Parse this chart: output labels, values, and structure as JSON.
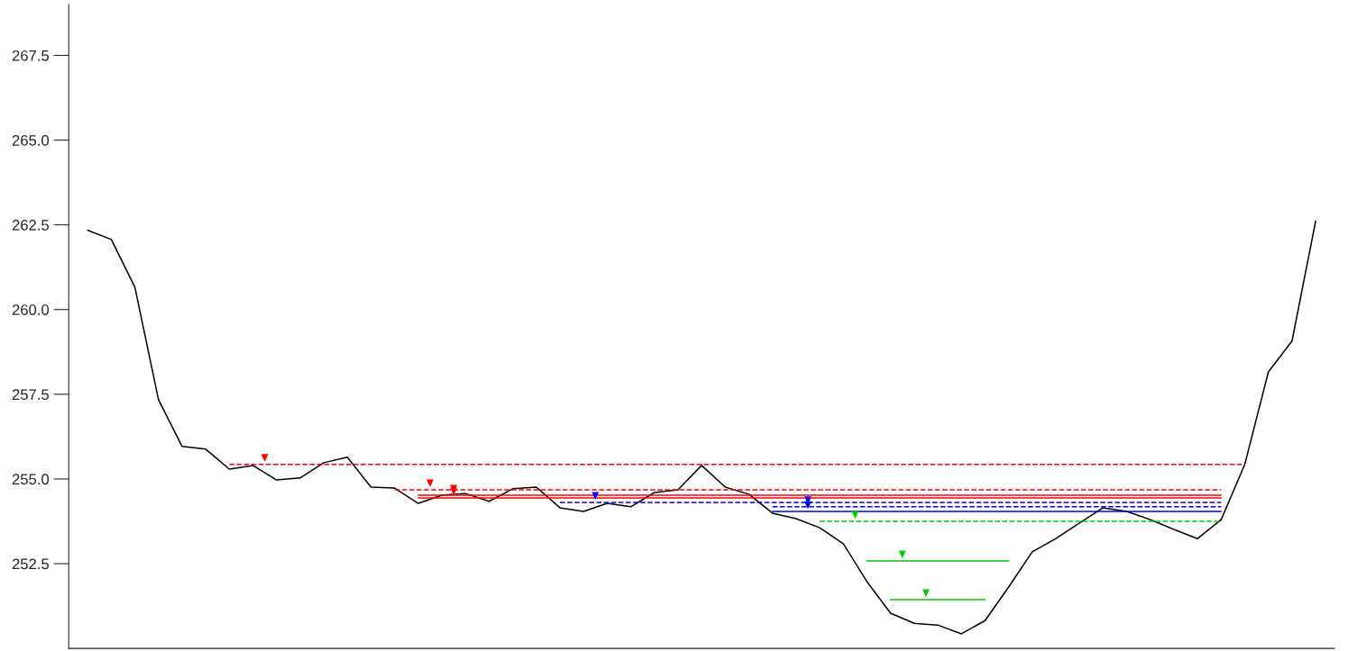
{
  "chart_data": {
    "type": "line",
    "tick_labels": "y",
    "categories": [
      null,
      null,
      null,
      null,
      null,
      null,
      null,
      null,
      null,
      null,
      null,
      null,
      null,
      null,
      null,
      null,
      null,
      null,
      null,
      null,
      null,
      null,
      null,
      null,
      null,
      null,
      null,
      null,
      null,
      null,
      null,
      null,
      null,
      null,
      null,
      null,
      null,
      null,
      null,
      null,
      null,
      null,
      null,
      null,
      null,
      null,
      null,
      null,
      null,
      null,
      null,
      null,
      null
    ],
    "ylim": [
      250,
      269
    ],
    "yticks": [
      {
        "value": 252.5,
        "label": "252.5"
      },
      {
        "value": 255,
        "label": "255.0"
      },
      {
        "value": 257.5,
        "label": "257.5"
      },
      {
        "value": 260,
        "label": "260.0"
      },
      {
        "value": 262.5,
        "label": "262.5"
      },
      {
        "value": 265,
        "label": "265.0"
      },
      {
        "value": 267.5,
        "label": "267.5"
      }
    ],
    "series": [
      {
        "color": "#000000",
        "values": [
          262.34,
          262.07,
          260.66,
          257.34,
          255.96,
          255.88,
          255.29,
          255.4,
          254.97,
          255.03,
          255.48,
          255.64,
          254.76,
          254.73,
          254.28,
          254.52,
          254.57,
          254.34,
          254.71,
          254.76,
          254.15,
          254.04,
          254.28,
          254.18,
          254.6,
          254.68,
          255.4,
          254.76,
          254.55,
          253.99,
          253.83,
          253.56,
          253.09,
          251.97,
          251.04,
          250.74,
          250.69,
          250.43,
          250.82,
          251.81,
          252.85,
          253.24,
          253.7,
          254.15,
          254.04,
          253.8,
          253.51,
          253.24,
          253.8,
          255.43,
          258.16,
          259.07,
          262.61
        ]
      },
      {
        "color": "#ff0000",
        "line_style": "dashed",
        "values": [
          null,
          null,
          null,
          null,
          null,
          null,
          255.43,
          255.43,
          255.43,
          255.43,
          255.43,
          255.43,
          255.43,
          255.43,
          255.43,
          255.43,
          255.43,
          255.43,
          255.43,
          255.43,
          255.43,
          255.43,
          255.43,
          255.43,
          255.43,
          255.43,
          255.43,
          255.43,
          255.43,
          255.43,
          255.43,
          255.43,
          255.43,
          255.43,
          255.43,
          255.43,
          255.43,
          255.43,
          255.43,
          255.43,
          255.43,
          255.43,
          255.43,
          255.43,
          255.43,
          255.43,
          255.43,
          255.43,
          255.43,
          255.43,
          null,
          null,
          null
        ]
      },
      {
        "color": "#ff0000",
        "line_style": "dashed",
        "values": [
          null,
          null,
          null,
          null,
          null,
          null,
          null,
          null,
          null,
          null,
          null,
          null,
          null,
          254.68,
          254.68,
          254.68,
          254.68,
          254.68,
          254.68,
          254.68,
          254.68,
          254.68,
          254.68,
          254.68,
          254.68,
          254.68,
          254.68,
          254.68,
          254.68,
          254.68,
          254.68,
          254.68,
          254.68,
          254.68,
          254.68,
          254.68,
          254.68,
          254.68,
          254.68,
          254.68,
          254.68,
          254.68,
          254.68,
          254.68,
          254.68,
          254.68,
          254.68,
          254.68,
          254.68,
          null,
          null,
          null,
          null
        ]
      },
      {
        "color": "#ff0000",
        "line_style": "solid",
        "values": [
          null,
          null,
          null,
          null,
          null,
          null,
          null,
          null,
          null,
          null,
          null,
          null,
          null,
          null,
          254.52,
          254.52,
          254.52,
          254.52,
          254.52,
          254.52,
          254.52,
          254.52,
          254.52,
          254.52,
          254.52,
          254.52,
          254.52,
          254.52,
          254.52,
          254.52,
          254.52,
          254.52,
          254.52,
          254.52,
          254.52,
          254.52,
          254.52,
          254.52,
          254.52,
          254.52,
          254.52,
          254.52,
          254.52,
          254.52,
          254.52,
          254.52,
          254.52,
          254.52,
          254.52,
          null,
          null,
          null,
          null
        ]
      },
      {
        "color": "#ff0000",
        "line_style": "solid",
        "values": [
          null,
          null,
          null,
          null,
          null,
          null,
          null,
          null,
          null,
          null,
          null,
          null,
          null,
          null,
          254.44,
          254.44,
          254.44,
          254.44,
          254.44,
          254.44,
          254.44,
          254.44,
          254.44,
          254.44,
          254.44,
          254.44,
          254.44,
          254.44,
          254.44,
          254.44,
          254.44,
          254.44,
          254.44,
          254.44,
          254.44,
          254.44,
          254.44,
          254.44,
          254.44,
          254.44,
          254.44,
          254.44,
          254.44,
          254.44,
          254.44,
          254.44,
          254.44,
          254.44,
          254.44,
          null,
          null,
          null,
          null
        ]
      },
      {
        "color": "#0000ff",
        "line_style": "dashed",
        "values": [
          null,
          null,
          null,
          null,
          null,
          null,
          null,
          null,
          null,
          null,
          null,
          null,
          null,
          null,
          null,
          null,
          null,
          null,
          null,
          null,
          254.31,
          254.31,
          254.31,
          254.31,
          254.31,
          254.31,
          254.31,
          254.31,
          254.31,
          254.31,
          254.31,
          254.31,
          254.31,
          254.31,
          254.31,
          254.31,
          254.31,
          254.31,
          254.31,
          254.31,
          254.31,
          254.31,
          254.31,
          254.31,
          254.31,
          254.31,
          254.31,
          254.31,
          254.31,
          null,
          null,
          null,
          null
        ]
      },
      {
        "color": "#0000ff",
        "line_style": "dashed",
        "values": [
          null,
          null,
          null,
          null,
          null,
          null,
          null,
          null,
          null,
          null,
          null,
          null,
          null,
          null,
          null,
          null,
          null,
          null,
          null,
          null,
          null,
          null,
          null,
          null,
          null,
          null,
          null,
          null,
          null,
          254.18,
          254.18,
          254.18,
          254.18,
          254.18,
          254.18,
          254.18,
          254.18,
          254.18,
          254.18,
          254.18,
          254.18,
          254.18,
          254.18,
          254.18,
          254.18,
          254.18,
          254.18,
          254.18,
          254.18,
          null,
          null,
          null,
          null
        ]
      },
      {
        "color": "#0000ff",
        "line_style": "solid",
        "values": [
          null,
          null,
          null,
          null,
          null,
          null,
          null,
          null,
          null,
          null,
          null,
          null,
          null,
          null,
          null,
          null,
          null,
          null,
          null,
          null,
          null,
          null,
          null,
          null,
          null,
          null,
          null,
          null,
          null,
          254.04,
          254.04,
          254.04,
          254.04,
          254.04,
          254.04,
          254.04,
          254.04,
          254.04,
          254.04,
          254.04,
          254.04,
          254.04,
          254.04,
          254.04,
          254.04,
          254.04,
          254.04,
          254.04,
          254.04,
          null,
          null,
          null,
          null
        ]
      },
      {
        "color": "#00cc00",
        "line_style": "dashed",
        "values": [
          null,
          null,
          null,
          null,
          null,
          null,
          null,
          null,
          null,
          null,
          null,
          null,
          null,
          null,
          null,
          null,
          null,
          null,
          null,
          null,
          null,
          null,
          null,
          null,
          null,
          null,
          null,
          null,
          null,
          null,
          null,
          253.75,
          253.75,
          253.75,
          253.75,
          253.75,
          253.75,
          253.75,
          253.75,
          253.75,
          253.75,
          253.75,
          253.75,
          253.75,
          253.75,
          253.75,
          253.75,
          253.75,
          253.75,
          null,
          null,
          null,
          null
        ]
      },
      {
        "color": "#00cc00",
        "line_style": "solid",
        "values": [
          null,
          null,
          null,
          null,
          null,
          null,
          null,
          null,
          null,
          null,
          null,
          null,
          null,
          null,
          null,
          null,
          null,
          null,
          null,
          null,
          null,
          null,
          null,
          null,
          null,
          null,
          null,
          null,
          null,
          null,
          null,
          null,
          null,
          252.58,
          252.58,
          252.58,
          252.58,
          252.58,
          252.58,
          252.58,
          null,
          null,
          null,
          null,
          null,
          null,
          null,
          null,
          null,
          null,
          null,
          null,
          null
        ]
      },
      {
        "color": "#00cc00",
        "line_style": "solid",
        "values": [
          null,
          null,
          null,
          null,
          null,
          null,
          null,
          null,
          null,
          null,
          null,
          null,
          null,
          null,
          null,
          null,
          null,
          null,
          null,
          null,
          null,
          null,
          null,
          null,
          null,
          null,
          null,
          null,
          null,
          null,
          null,
          null,
          null,
          null,
          251.44,
          251.44,
          251.44,
          251.44,
          251.44,
          null,
          null,
          null,
          null,
          null,
          null,
          null,
          null,
          null,
          null,
          null,
          null,
          null,
          null
        ]
      }
    ]
  }
}
